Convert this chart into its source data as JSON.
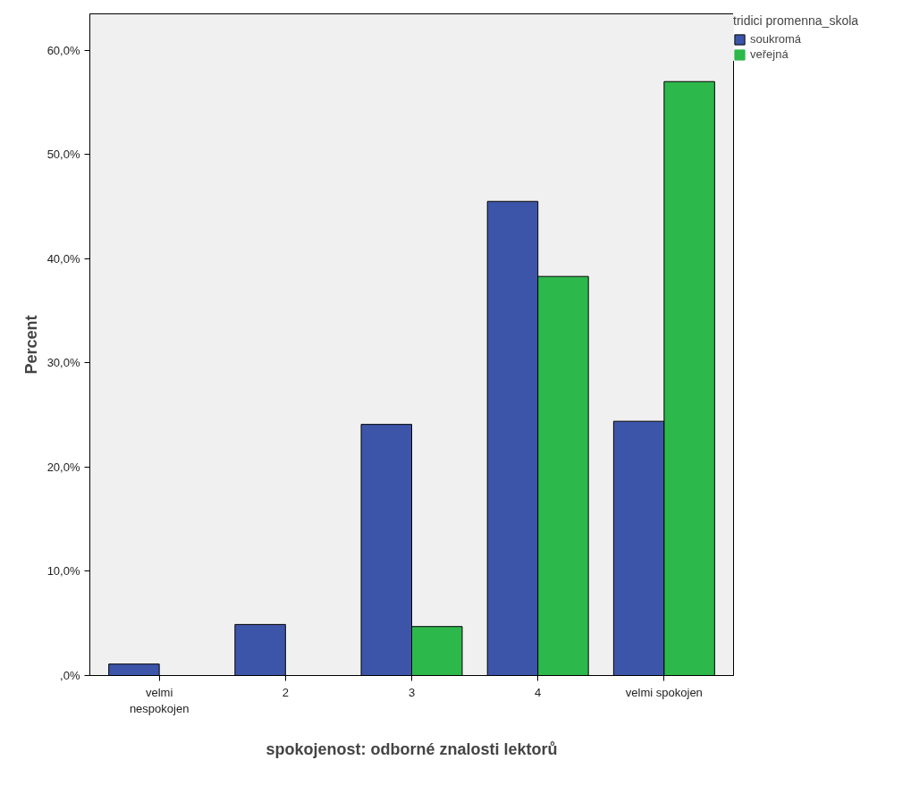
{
  "chart_data": {
    "type": "bar",
    "xlabel": "spokojenost: odborné znalosti lektorů",
    "ylabel": "Percent",
    "legend_title": "tridici promenna_skola",
    "categories": [
      "velmi\nnespokojen",
      "2",
      "3",
      "4",
      "velmi spokojen"
    ],
    "series": [
      {
        "name": "soukromá",
        "color": "#3d55a8",
        "values": [
          1.1,
          4.9,
          24.1,
          45.5,
          24.4
        ]
      },
      {
        "name": "veřejná",
        "color": "#2db84b",
        "values": [
          0,
          0,
          4.7,
          38.3,
          57.0
        ]
      }
    ],
    "ylim": [
      0,
      63.5
    ],
    "yticks": [
      {
        "value": 0,
        "label": ",0%"
      },
      {
        "value": 10,
        "label": "10,0%"
      },
      {
        "value": 20,
        "label": "20,0%"
      },
      {
        "value": 30,
        "label": "30,0%"
      },
      {
        "value": 40,
        "label": "40,0%"
      },
      {
        "value": 50,
        "label": "50,0%"
      },
      {
        "value": 60,
        "label": "60,0%"
      }
    ],
    "grid": false,
    "legend": "top right"
  }
}
